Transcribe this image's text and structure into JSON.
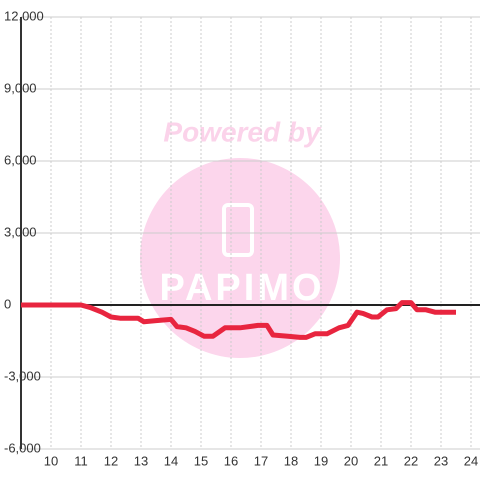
{
  "chart_data": {
    "type": "line",
    "watermark": [
      "Powered by",
      "PAPIMO"
    ],
    "x": [
      9,
      10,
      11,
      11.3,
      11.7,
      12,
      12.3,
      12.9,
      13.1,
      13.5,
      14,
      14.2,
      14.5,
      14.8,
      15.1,
      15.4,
      15.8,
      16.3,
      16.6,
      16.9,
      17.2,
      17.4,
      17.9,
      18.3,
      18.5,
      18.8,
      19.2,
      19.6,
      19.9,
      20.2,
      20.4,
      20.7,
      20.9,
      21.2,
      21.5,
      21.7,
      22.0,
      22.2,
      22.5,
      22.8,
      23.5
    ],
    "series": [
      {
        "color": "#e8253f",
        "values": [
          0,
          0,
          0,
          -100,
          -300,
          -500,
          -550,
          -550,
          -700,
          -650,
          -600,
          -900,
          -950,
          -1100,
          -1300,
          -1300,
          -950,
          -950,
          -900,
          -850,
          -850,
          -1250,
          -1300,
          -1350,
          -1350,
          -1200,
          -1200,
          -950,
          -850,
          -300,
          -350,
          -500,
          -500,
          -200,
          -150,
          100,
          100,
          -200,
          -200,
          -300,
          -300
        ]
      }
    ],
    "xlim": [
      9,
      24.3
    ],
    "xticks": [
      10,
      11,
      12,
      13,
      14,
      15,
      16,
      17,
      18,
      19,
      20,
      21,
      22,
      23,
      24
    ],
    "ylim": [
      -6000,
      12000
    ],
    "yticks": [
      {
        "value": -6000,
        "label": "-6,000"
      },
      {
        "value": -3000,
        "label": "-3,000"
      },
      0,
      {
        "value": 3000,
        "label": "3,000"
      },
      {
        "value": 6000,
        "label": "6,000"
      },
      {
        "value": 9000,
        "label": "9,000"
      },
      {
        "value": 12000,
        "label": "12,000"
      }
    ],
    "grid": true
  }
}
